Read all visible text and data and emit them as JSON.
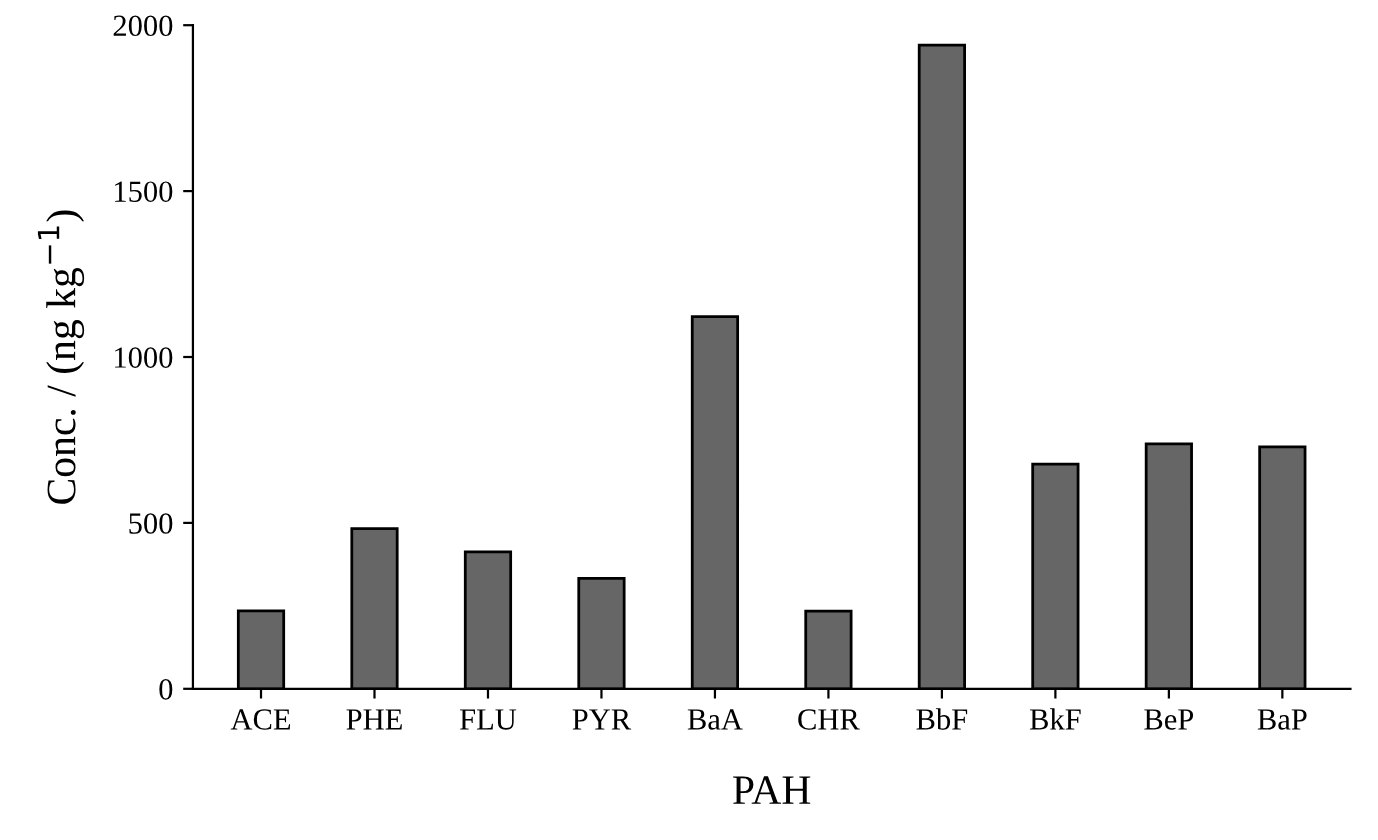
{
  "chart_data": {
    "type": "bar",
    "xlabel": "PAH",
    "ylabel": "Conc. / (ng kg$^{−1}$)",
    "categories": [
      "ACE",
      "PHE",
      "FLU",
      "PYR",
      "BaA",
      "CHR",
      "BbF",
      "BkF",
      "BeP",
      "BaP"
    ],
    "values": [
      235,
      483,
      413,
      333,
      1122,
      234,
      1940,
      677,
      738,
      729
    ],
    "color": "#666666",
    "ylim": [
      0,
      2000
    ],
    "yticks": [
      0,
      500,
      1000,
      1500,
      2000
    ],
    "grid": false
  }
}
